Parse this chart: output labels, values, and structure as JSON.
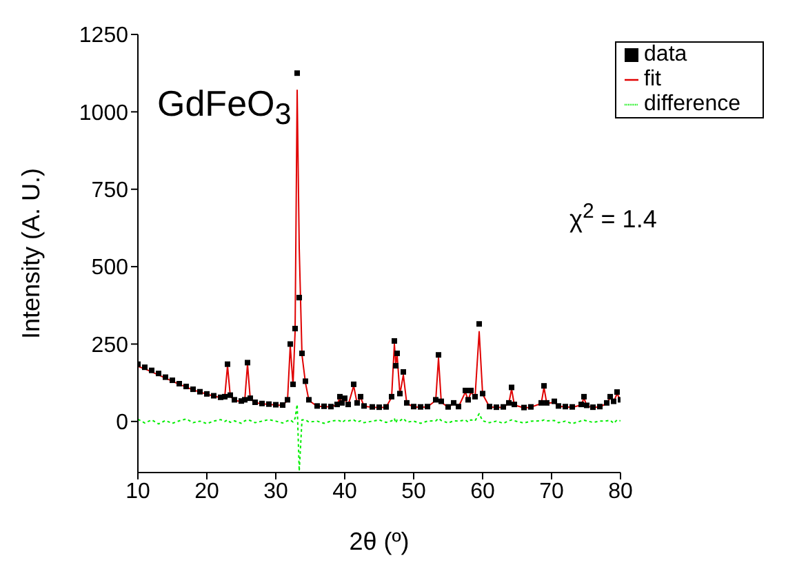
{
  "chart_data": {
    "type": "line",
    "xlabel": "2θ (º)",
    "ylabel": "Intensity (A. U.)",
    "annotations": [
      "GdFeO$_{3}$",
      "χ$^{2}$ = 1.4"
    ],
    "x": [
      10,
      11,
      12,
      13,
      14,
      15,
      16,
      17,
      18,
      19,
      20,
      21,
      22,
      22.6,
      23.0,
      23.4,
      24,
      25,
      25.5,
      25.9,
      26.3,
      27,
      28,
      29,
      30,
      31,
      31.7,
      32.1,
      32.5,
      32.8,
      33.1,
      33.4,
      33.8,
      34.3,
      34.8,
      36,
      37,
      38,
      38.9,
      39.3,
      39.6,
      40.0,
      40.5,
      41.3,
      41.8,
      42.3,
      42.8,
      44,
      45,
      46,
      46.8,
      47.2,
      47.4,
      47.6,
      48.0,
      48.5,
      49,
      50,
      51,
      52,
      53.2,
      53.6,
      54,
      55,
      55.8,
      56.5,
      57.5,
      57.9,
      58.3,
      58.9,
      59.5,
      60.0,
      61,
      62,
      63,
      63.8,
      64.2,
      64.6,
      66,
      67,
      68.5,
      68.9,
      69.3,
      70.4,
      71,
      72,
      73,
      74.3,
      74.7,
      75.1,
      76,
      77,
      78,
      78.5,
      79,
      79.5,
      80
    ],
    "series": [
      {
        "name": "data",
        "type": "scatter",
        "color": "#000000",
        "marker": "square",
        "values": [
          185,
          175,
          165,
          155,
          143,
          133,
          122,
          113,
          104,
          96,
          89,
          83,
          78,
          80,
          185,
          85,
          70,
          66,
          70,
          190,
          75,
          62,
          58,
          56,
          54,
          53,
          70,
          250,
          120,
          300,
          1125,
          400,
          220,
          130,
          70,
          50,
          49,
          48,
          55,
          80,
          60,
          75,
          55,
          120,
          60,
          80,
          50,
          47,
          46,
          47,
          80,
          260,
          180,
          220,
          90,
          160,
          60,
          48,
          47,
          48,
          70,
          215,
          65,
          47,
          60,
          48,
          100,
          70,
          100,
          80,
          315,
          90,
          48,
          46,
          47,
          60,
          110,
          55,
          45,
          47,
          60,
          115,
          60,
          65,
          50,
          48,
          47,
          55,
          80,
          52,
          46,
          48,
          60,
          80,
          65,
          95,
          70
        ]
      },
      {
        "name": "fit",
        "color": "#e00000",
        "line_style": "solid",
        "values": [
          178,
          170,
          160,
          150,
          140,
          130,
          120,
          111,
          102,
          95,
          88,
          82,
          77,
          80,
          180,
          82,
          68,
          64,
          68,
          185,
          72,
          61,
          57,
          55,
          53,
          52,
          68,
          245,
          118,
          290,
          1070,
          560,
          215,
          125,
          68,
          49,
          48,
          47,
          54,
          78,
          58,
          72,
          53,
          115,
          58,
          78,
          49,
          46,
          45,
          46,
          78,
          250,
          185,
          215,
          88,
          150,
          58,
          47,
          46,
          47,
          68,
          205,
          62,
          46,
          58,
          47,
          95,
          68,
          95,
          78,
          290,
          88,
          47,
          45,
          46,
          58,
          105,
          53,
          44,
          46,
          58,
          110,
          58,
          62,
          49,
          47,
          46,
          53,
          76,
          50,
          45,
          47,
          58,
          76,
          63,
          90,
          68
        ]
      },
      {
        "name": "difference",
        "color": "#00ee00",
        "line_style": "dotted",
        "values": [
          7,
          -5,
          5,
          -8,
          3,
          -6,
          2,
          8,
          -4,
          1,
          -7,
          1,
          6,
          0,
          5,
          -3,
          2,
          -6,
          2,
          5,
          3,
          -4,
          1,
          6,
          1,
          -5,
          2,
          5,
          -2,
          10,
          55,
          -160,
          5,
          5,
          -2,
          1,
          -6,
          1,
          4,
          2,
          -3,
          3,
          2,
          5,
          -2,
          2,
          -4,
          1,
          5,
          -3,
          2,
          10,
          -5,
          5,
          2,
          10,
          -2,
          1,
          -6,
          1,
          2,
          10,
          3,
          -5,
          2,
          1,
          5,
          -2,
          5,
          2,
          25,
          2,
          -4,
          1,
          -6,
          2,
          5,
          2,
          -5,
          1,
          2,
          5,
          2,
          3,
          -4,
          1,
          -7,
          2,
          4,
          2,
          -3,
          1,
          2,
          4,
          -6,
          5,
          2
        ]
      }
    ],
    "xlim": [
      10,
      80
    ],
    "xticks": [
      10,
      20,
      30,
      40,
      50,
      60,
      70,
      80
    ],
    "ylim": [
      -165,
      1250
    ],
    "yticks": [
      0,
      250,
      500,
      750,
      1000,
      1250
    ],
    "grid": false,
    "legend": "top right"
  }
}
